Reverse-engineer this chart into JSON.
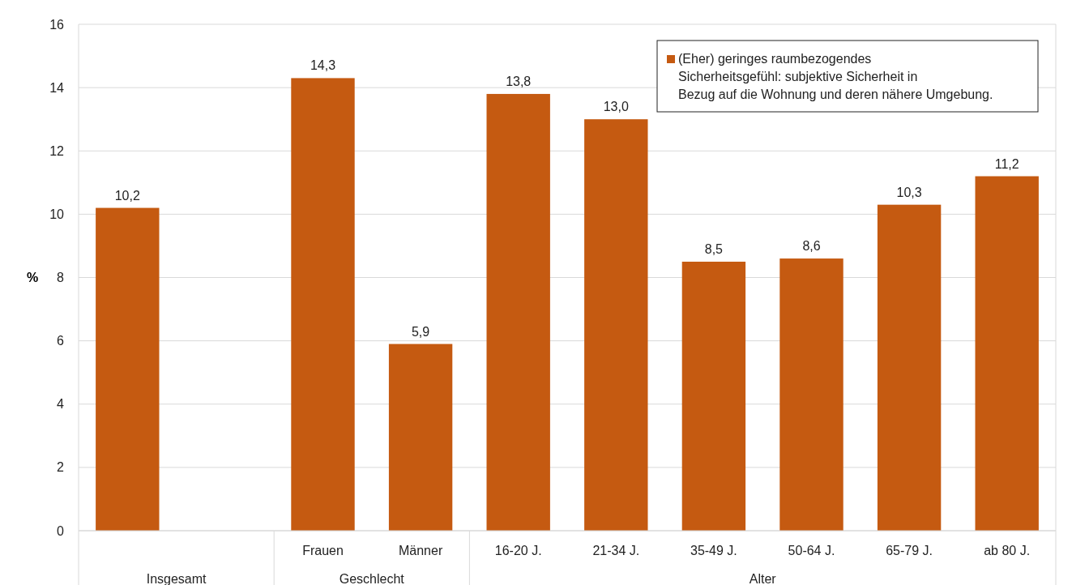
{
  "chart_data": {
    "type": "bar",
    "ylabel": "%",
    "categories": [
      null,
      null,
      "Frauen",
      "Männer",
      "16-20 J.",
      "21-34 J.",
      "35-49 J.",
      "50-64 J.",
      "65-79 J.",
      "ab 80 J."
    ],
    "series": [
      {
        "name": "(Eher) geringes raumbezogendes Sicherheitsgefühl: subjektive Sicherheit in Bezug auf die Wohnung und deren nähere Umgebung.",
        "color": "#c55a11",
        "values": [
          10.2,
          null,
          14.3,
          5.9,
          13.8,
          13.0,
          8.5,
          8.6,
          10.3,
          11.2
        ],
        "value_labels": [
          "10,2",
          null,
          "14,3",
          "5,9",
          "13,8",
          "13,0",
          "8,5",
          "8,6",
          "10,3",
          "11,2"
        ]
      }
    ],
    "annotations": [
      "Insgesamt",
      "Geschlecht",
      "Alter"
    ],
    "ylim": [
      0,
      16
    ],
    "yticks": [
      0,
      2,
      4,
      6,
      8,
      10,
      12,
      14,
      16
    ],
    "grid": "y",
    "legend": "top right"
  }
}
